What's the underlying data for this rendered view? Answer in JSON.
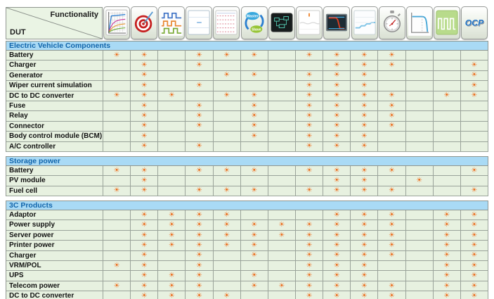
{
  "header": {
    "top_right_label": "Functionality",
    "bottom_left_label": "DUT",
    "columns": [
      {
        "icon": "curve-graph-icon"
      },
      {
        "icon": "target-icon"
      },
      {
        "icon": "square-waveforms-icon"
      },
      {
        "icon": "scope-grid-icon"
      },
      {
        "icon": "ripple-waveform-icon"
      },
      {
        "icon": "master-slave-icon",
        "labels": [
          "Master",
          "Slave"
        ]
      },
      {
        "icon": "circuit-screen-icon"
      },
      {
        "icon": "waveform-marker-icon"
      },
      {
        "icon": "transient-scope-icon"
      },
      {
        "icon": "ramp-up-icon"
      },
      {
        "icon": "stopwatch-icon"
      },
      {
        "icon": "droop-curve-icon"
      },
      {
        "icon": "pulse-train-icon"
      },
      {
        "icon": "ocp-logo",
        "text": "OCP"
      }
    ]
  },
  "mark": {
    "glyph": "☀",
    "color": "#ec6c1c"
  },
  "colors": {
    "section_bar_bg": "#a9daf5",
    "section_bar_text": "#1265ab",
    "cell_bg": "#e7f1e0",
    "grid_line": "#9aa39a",
    "mark_orange": "#ec6c1c"
  },
  "sections": [
    {
      "title": "Electric Vehicle Components",
      "rows": [
        {
          "label": "Battery",
          "marks": [
            1,
            1,
            0,
            1,
            1,
            1,
            0,
            1,
            1,
            1,
            1,
            0,
            0,
            0
          ]
        },
        {
          "label": "Charger",
          "marks": [
            0,
            1,
            0,
            1,
            0,
            0,
            0,
            0,
            1,
            1,
            1,
            0,
            0,
            1
          ]
        },
        {
          "label": "Generator",
          "marks": [
            0,
            1,
            0,
            0,
            1,
            1,
            0,
            1,
            1,
            1,
            0,
            0,
            0,
            1
          ]
        },
        {
          "label": "Wiper current simulation",
          "marks": [
            0,
            1,
            0,
            1,
            0,
            0,
            0,
            1,
            1,
            1,
            0,
            0,
            0,
            1
          ]
        },
        {
          "label": "DC to DC converter",
          "marks": [
            1,
            1,
            1,
            0,
            1,
            1,
            0,
            1,
            1,
            1,
            1,
            0,
            1,
            1
          ]
        },
        {
          "label": "Fuse",
          "marks": [
            0,
            1,
            0,
            1,
            0,
            1,
            0,
            1,
            1,
            1,
            1,
            0,
            0,
            0
          ]
        },
        {
          "label": "Relay",
          "marks": [
            0,
            1,
            0,
            1,
            0,
            1,
            0,
            1,
            1,
            1,
            1,
            0,
            0,
            0
          ]
        },
        {
          "label": "Connector",
          "marks": [
            0,
            1,
            0,
            1,
            0,
            1,
            0,
            1,
            1,
            1,
            1,
            0,
            0,
            0
          ]
        },
        {
          "label": "Body control module (BCM)",
          "marks": [
            0,
            1,
            0,
            0,
            0,
            1,
            0,
            1,
            1,
            1,
            0,
            0,
            0,
            0
          ]
        },
        {
          "label": "A/C controller",
          "marks": [
            0,
            1,
            0,
            1,
            0,
            0,
            0,
            1,
            1,
            1,
            0,
            0,
            0,
            0
          ]
        }
      ]
    },
    {
      "title": "Storage power",
      "rows": [
        {
          "label": "Battery",
          "marks": [
            1,
            1,
            0,
            1,
            1,
            1,
            0,
            1,
            1,
            1,
            1,
            0,
            0,
            1
          ]
        },
        {
          "label": "PV module",
          "marks": [
            0,
            1,
            0,
            0,
            0,
            0,
            0,
            0,
            1,
            1,
            0,
            1,
            0,
            0
          ]
        },
        {
          "label": "Fuel cell",
          "marks": [
            1,
            1,
            0,
            1,
            1,
            1,
            0,
            1,
            1,
            1,
            1,
            0,
            0,
            1
          ]
        }
      ]
    },
    {
      "title": "3C Products",
      "rows": [
        {
          "label": "Adaptor",
          "marks": [
            0,
            1,
            1,
            1,
            1,
            0,
            0,
            0,
            1,
            1,
            1,
            0,
            1,
            1
          ]
        },
        {
          "label": "Power supply",
          "marks": [
            0,
            1,
            1,
            1,
            1,
            1,
            1,
            1,
            1,
            1,
            1,
            0,
            1,
            1
          ]
        },
        {
          "label": "Server power",
          "marks": [
            0,
            1,
            1,
            1,
            1,
            1,
            1,
            1,
            1,
            1,
            1,
            0,
            1,
            1
          ]
        },
        {
          "label": "Printer power",
          "marks": [
            0,
            1,
            1,
            1,
            1,
            1,
            0,
            1,
            1,
            1,
            1,
            0,
            1,
            1
          ]
        },
        {
          "label": "Charger",
          "marks": [
            0,
            1,
            0,
            1,
            0,
            1,
            0,
            1,
            1,
            1,
            1,
            0,
            1,
            1
          ]
        },
        {
          "label": "VRM/POL",
          "marks": [
            1,
            1,
            0,
            1,
            0,
            0,
            0,
            1,
            1,
            1,
            0,
            0,
            1,
            1
          ]
        },
        {
          "label": "UPS",
          "marks": [
            0,
            1,
            1,
            1,
            0,
            1,
            0,
            1,
            1,
            1,
            0,
            0,
            1,
            1
          ]
        },
        {
          "label": "Telecom power",
          "marks": [
            1,
            1,
            1,
            1,
            0,
            1,
            1,
            1,
            1,
            1,
            1,
            0,
            1,
            1
          ]
        },
        {
          "label": "DC to DC converter",
          "marks": [
            0,
            1,
            1,
            1,
            1,
            0,
            0,
            1,
            1,
            1,
            1,
            0,
            1,
            1
          ]
        }
      ]
    }
  ]
}
